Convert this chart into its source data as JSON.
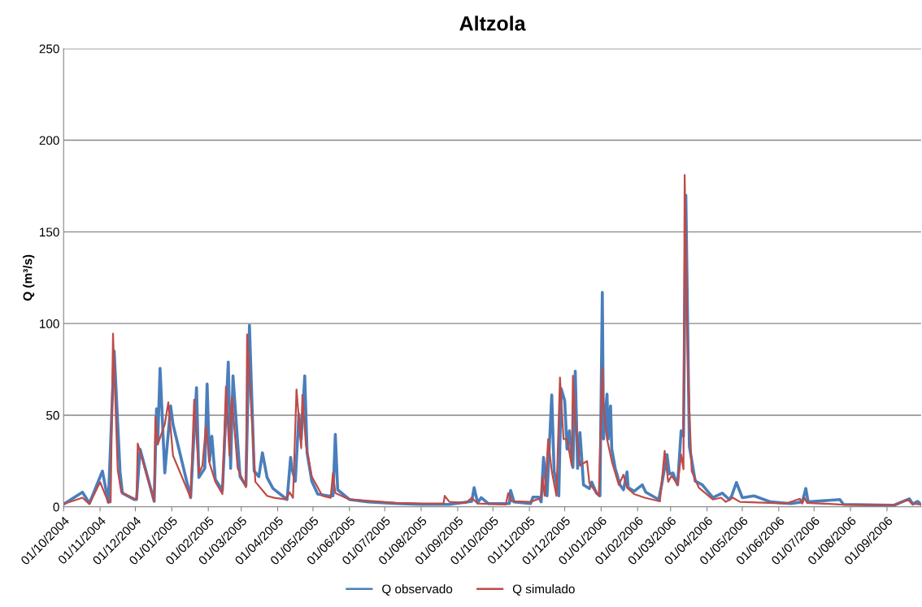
{
  "chart_data": {
    "type": "line",
    "title": "Altzola",
    "ylabel": "Q (m³/s)",
    "xlim": [
      "2004-10-01",
      "2006-09-30"
    ],
    "xticks": [
      {
        "value": "2004-10-01",
        "label": "01/10/2004"
      },
      {
        "value": "2004-11-01",
        "label": "01/11/2004"
      },
      {
        "value": "2004-12-01",
        "label": "01/12/2004"
      },
      {
        "value": "2005-01-01",
        "label": "01/01/2005"
      },
      {
        "value": "2005-02-01",
        "label": "01/02/2005"
      },
      {
        "value": "2005-03-01",
        "label": "01/03/2005"
      },
      {
        "value": "2005-04-01",
        "label": "01/04/2005"
      },
      {
        "value": "2005-05-01",
        "label": "01/05/2005"
      },
      {
        "value": "2005-06-01",
        "label": "01/06/2005"
      },
      {
        "value": "2005-07-01",
        "label": "01/07/2005"
      },
      {
        "value": "2005-08-01",
        "label": "01/08/2005"
      },
      {
        "value": "2005-09-01",
        "label": "01/09/2005"
      },
      {
        "value": "2005-10-01",
        "label": "01/10/2005"
      },
      {
        "value": "2005-11-01",
        "label": "01/11/2005"
      },
      {
        "value": "2005-12-01",
        "label": "01/12/2005"
      },
      {
        "value": "2006-01-01",
        "label": "01/01/2006"
      },
      {
        "value": "2006-02-01",
        "label": "01/02/2006"
      },
      {
        "value": "2006-03-01",
        "label": "01/03/2006"
      },
      {
        "value": "2006-04-01",
        "label": "01/04/2006"
      },
      {
        "value": "2006-05-01",
        "label": "01/05/2006"
      },
      {
        "value": "2006-06-01",
        "label": "01/06/2006"
      },
      {
        "value": "2006-07-01",
        "label": "01/07/2006"
      },
      {
        "value": "2006-08-01",
        "label": "01/08/2006"
      },
      {
        "value": "2006-09-01",
        "label": "01/09/2006"
      }
    ],
    "ylim": [
      0,
      250
    ],
    "yticks": [
      0,
      50,
      100,
      150,
      200,
      250
    ],
    "grid": "y",
    "legend": "bottom",
    "marker": "none",
    "line_style": "solid",
    "series": [
      {
        "name": "Q observado",
        "color": "#4a7ebb",
        "x": [
          "2004-10-01",
          "2004-10-17",
          "2004-10-23",
          "2004-11-03",
          "2004-11-08",
          "2004-11-13",
          "2004-11-18",
          "2004-11-20",
          "2004-11-30",
          "2004-12-02",
          "2004-12-05",
          "2004-12-17",
          "2004-12-19",
          "2004-12-20",
          "2004-12-22",
          "2004-12-26",
          "2004-12-31",
          "2005-01-02",
          "2005-01-17",
          "2005-01-22",
          "2005-01-24",
          "2005-01-29",
          "2005-01-31",
          "2005-02-02",
          "2005-02-04",
          "2005-02-07",
          "2005-02-13",
          "2005-02-18",
          "2005-02-20",
          "2005-02-22",
          "2005-02-28",
          "2005-03-05",
          "2005-03-08",
          "2005-03-12",
          "2005-03-16",
          "2005-03-19",
          "2005-03-23",
          "2005-03-28",
          "2005-04-07",
          "2005-04-09",
          "2005-04-12",
          "2005-04-13",
          "2005-04-16",
          "2005-04-19",
          "2005-04-21",
          "2005-04-24",
          "2005-04-26",
          "2005-04-30",
          "2005-05-05",
          "2005-05-14",
          "2005-05-18",
          "2005-05-20",
          "2005-05-22",
          "2005-06-01",
          "2005-06-17",
          "2005-07-11",
          "2005-08-02",
          "2005-08-25",
          "2005-09-13",
          "2005-09-15",
          "2005-09-18",
          "2005-09-21",
          "2005-09-27",
          "2005-10-15",
          "2005-10-16",
          "2005-10-19",
          "2005-11-02",
          "2005-11-04",
          "2005-11-09",
          "2005-11-11",
          "2005-11-13",
          "2005-11-16",
          "2005-11-20",
          "2005-11-22",
          "2005-11-26",
          "2005-11-28",
          "2005-12-01",
          "2005-12-03",
          "2005-12-05",
          "2005-12-08",
          "2005-12-10",
          "2005-12-12",
          "2005-12-14",
          "2005-12-17",
          "2005-12-22",
          "2005-12-24",
          "2005-12-28",
          "2005-12-31",
          "2006-01-02",
          "2006-01-03",
          "2006-01-06",
          "2006-01-07",
          "2006-01-09",
          "2006-01-10",
          "2006-01-13",
          "2006-01-17",
          "2006-01-20",
          "2006-01-23",
          "2006-01-24",
          "2006-01-29",
          "2006-02-05",
          "2006-02-08",
          "2006-02-19",
          "2006-02-21",
          "2006-02-26",
          "2006-02-28",
          "2006-03-03",
          "2006-03-07",
          "2006-03-10",
          "2006-03-12",
          "2006-03-14",
          "2006-03-17",
          "2006-03-22",
          "2006-03-28",
          "2006-04-06",
          "2006-04-14",
          "2006-04-20",
          "2006-04-22",
          "2006-04-26",
          "2006-05-01",
          "2006-05-11",
          "2006-05-25",
          "2006-06-11",
          "2006-06-21",
          "2006-06-24",
          "2006-06-26",
          "2006-07-23",
          "2006-07-26",
          "2006-09-07",
          "2006-09-20",
          "2006-09-23",
          "2006-09-27",
          "2006-09-30"
        ],
        "values": [
          1.5,
          8,
          2,
          19.5,
          2.5,
          85,
          19,
          7.5,
          4,
          4,
          31.5,
          3,
          53.5,
          35,
          75.5,
          18.5,
          55,
          45,
          5,
          65,
          16,
          21,
          67,
          25,
          38.5,
          15,
          9,
          79,
          21,
          71.5,
          16.5,
          11.5,
          99,
          19.5,
          16.5,
          29.5,
          16,
          10,
          5,
          4,
          27,
          21,
          14,
          50.5,
          37,
          71.5,
          29.5,
          14,
          7,
          6,
          6,
          39.5,
          9.3,
          4,
          2.7,
          1.8,
          1.3,
          1.3,
          3,
          10.5,
          2.2,
          5,
          1.8,
          1.8,
          9,
          2.7,
          1.8,
          5.3,
          5.3,
          2.7,
          27,
          6,
          61,
          19.5,
          6,
          64.5,
          58,
          31.5,
          41.5,
          21.5,
          74,
          21,
          40.5,
          12,
          10,
          13.5,
          7.5,
          6,
          117,
          37,
          61.5,
          37,
          55,
          31.5,
          21,
          12,
          9.3,
          19,
          10.5,
          8.5,
          12,
          8,
          4,
          10.5,
          28.5,
          18,
          18.5,
          12,
          41.5,
          38.5,
          170,
          33,
          14,
          12,
          5,
          7.5,
          4,
          6,
          13.3,
          5,
          6,
          2.7,
          1.8,
          2.7,
          10,
          2.7,
          4,
          1.3,
          0.9,
          4.4,
          1.5,
          3,
          1.3
        ]
      },
      {
        "name": "Q simulado",
        "color": "#be4b48",
        "x": [
          "2004-10-01",
          "2004-10-17",
          "2004-10-23",
          "2004-11-01",
          "2004-11-08",
          "2004-11-10",
          "2004-11-12",
          "2004-11-16",
          "2004-11-19",
          "2004-11-30",
          "2004-12-02",
          "2004-12-03",
          "2004-12-17",
          "2004-12-18",
          "2004-12-20",
          "2004-12-26",
          "2004-12-29",
          "2005-01-02",
          "2005-01-17",
          "2005-01-20",
          "2005-01-24",
          "2005-01-27",
          "2005-01-30",
          "2005-02-02",
          "2005-02-07",
          "2005-02-13",
          "2005-02-16",
          "2005-02-19",
          "2005-02-21",
          "2005-02-26",
          "2005-03-05",
          "2005-03-06",
          "2005-03-13",
          "2005-03-23",
          "2005-03-29",
          "2005-04-08",
          "2005-04-11",
          "2005-04-14",
          "2005-04-17",
          "2005-04-21",
          "2005-04-22",
          "2005-04-25",
          "2005-04-30",
          "2005-05-09",
          "2005-05-16",
          "2005-05-18",
          "2005-05-20",
          "2005-06-01",
          "2005-07-11",
          "2005-08-02",
          "2005-08-20",
          "2005-08-21",
          "2005-08-25",
          "2005-09-08",
          "2005-09-13",
          "2005-09-18",
          "2005-10-12",
          "2005-10-14",
          "2005-10-17",
          "2005-11-02",
          "2005-11-11",
          "2005-11-12",
          "2005-11-14",
          "2005-11-17",
          "2005-11-20",
          "2005-11-24",
          "2005-11-27",
          "2005-11-30",
          "2005-12-03",
          "2005-12-07",
          "2005-12-08",
          "2005-12-10",
          "2005-12-14",
          "2005-12-20",
          "2005-12-22",
          "2005-12-28",
          "2005-12-30",
          "2006-01-02",
          "2006-01-03",
          "2006-01-06",
          "2006-01-10",
          "2006-01-16",
          "2006-01-20",
          "2006-01-23",
          "2006-01-29",
          "2006-02-07",
          "2006-02-20",
          "2006-02-24",
          "2006-02-27",
          "2006-03-02",
          "2006-03-07",
          "2006-03-10",
          "2006-03-12",
          "2006-03-13",
          "2006-03-16",
          "2006-03-19",
          "2006-03-25",
          "2006-04-06",
          "2006-04-13",
          "2006-04-17",
          "2006-04-23",
          "2006-04-29",
          "2006-06-07",
          "2006-06-19",
          "2006-06-21",
          "2006-06-23",
          "2006-06-25",
          "2006-07-23",
          "2006-09-07",
          "2006-09-19",
          "2006-09-22",
          "2006-09-30"
        ],
        "values": [
          1.5,
          5,
          1.5,
          13.5,
          2.5,
          2.5,
          94.5,
          20,
          8,
          4.5,
          4,
          34.5,
          3,
          49,
          34,
          45,
          57,
          28,
          5,
          58.5,
          18,
          22.5,
          44,
          24,
          13.7,
          7,
          65.5,
          28,
          60,
          21,
          10.7,
          94,
          13.7,
          6,
          4.9,
          4,
          8,
          4.9,
          64,
          32,
          61,
          34,
          16.5,
          6,
          4.9,
          18.5,
          7.5,
          4,
          2.2,
          1.8,
          1.8,
          6,
          2.7,
          2.2,
          4.9,
          1.8,
          1.3,
          7.5,
          3,
          2.7,
          4.9,
          16.5,
          6,
          37,
          19.5,
          6,
          70.5,
          37,
          37,
          22.5,
          71.5,
          47.5,
          22.5,
          25,
          13,
          7.5,
          6,
          76,
          55,
          37,
          25,
          12,
          17.5,
          10.5,
          7,
          5,
          3,
          30.5,
          13.7,
          17,
          12,
          28.5,
          20.5,
          181,
          69.5,
          19.5,
          10.5,
          4,
          5,
          2.7,
          5,
          2.7,
          1.8,
          4.4,
          1.8,
          5,
          2.2,
          1.3,
          0.9,
          4,
          1.8,
          1.3
        ]
      }
    ]
  }
}
